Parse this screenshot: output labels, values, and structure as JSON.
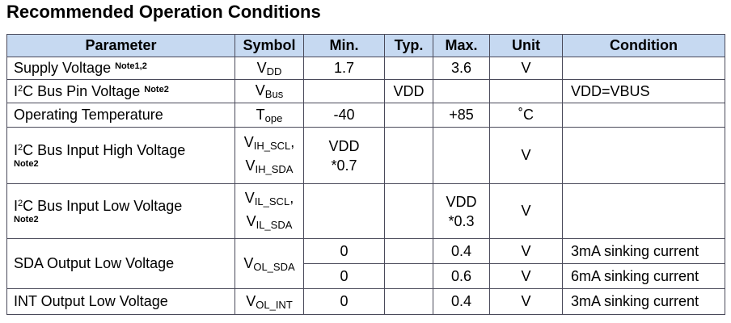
{
  "title": "Recommended Operation Conditions",
  "table": {
    "header": [
      "Parameter",
      "Symbol",
      "Min.",
      "Typ.",
      "Max.",
      "Unit",
      "Condition"
    ],
    "rows": [
      {
        "parameter": {
          "text": "Supply Voltage",
          "note": "Note1,2"
        },
        "symbol": [
          {
            "base": "V",
            "sub": "DD"
          }
        ],
        "min": "1.7",
        "max": "3.6",
        "unit": "V"
      },
      {
        "parameter": {
          "prefix": "I",
          "sup": "2",
          "text": "C Bus Pin Voltage",
          "note": "Note2"
        },
        "symbol": [
          {
            "base": "V",
            "sub": "Bus"
          }
        ],
        "typ": "VDD",
        "condition": "VDD=VBUS"
      },
      {
        "parameter": {
          "text": "Operating Temperature"
        },
        "symbol": [
          {
            "base": "T",
            "sub": "ope"
          }
        ],
        "min": "-40",
        "max": "+85",
        "unit": "˚C"
      },
      {
        "parameter": {
          "prefix": "I",
          "sup": "2",
          "text": "C Bus Input High Voltage",
          "note": "Note2"
        },
        "symbol": [
          {
            "base": "V",
            "sub": "IH_SCL",
            "sep": ","
          },
          {
            "base": "V",
            "sub": "IH_SDA"
          }
        ],
        "min": [
          "VDD",
          "*0.7"
        ],
        "unit": "V"
      },
      {
        "parameter": {
          "prefix": "I",
          "sup": "2",
          "text": "C Bus Input Low Voltage",
          "note": "Note2"
        },
        "symbol": [
          {
            "base": "V",
            "sub": "IL_SCL",
            "sep": ","
          },
          {
            "base": "V",
            "sub": "IL_SDA"
          }
        ],
        "max": [
          "VDD",
          "*0.3"
        ],
        "unit": "V"
      },
      {
        "parameter": {
          "text": "SDA Output Low Voltage"
        },
        "symbol": [
          {
            "base": "V",
            "sub": "OL_SDA"
          }
        ],
        "min": "0",
        "max": "0.4",
        "unit": "V",
        "condition": "3mA sinking current"
      },
      {
        "min": "0",
        "max": "0.6",
        "unit": "V",
        "condition": "6mA sinking current"
      },
      {
        "parameter": {
          "text": "INT Output Low Voltage"
        },
        "symbol": [
          {
            "base": "V",
            "sub": "OL_INT"
          }
        ],
        "min": "0",
        "max": "0.4",
        "unit": "V",
        "condition": "3mA sinking current"
      }
    ]
  }
}
